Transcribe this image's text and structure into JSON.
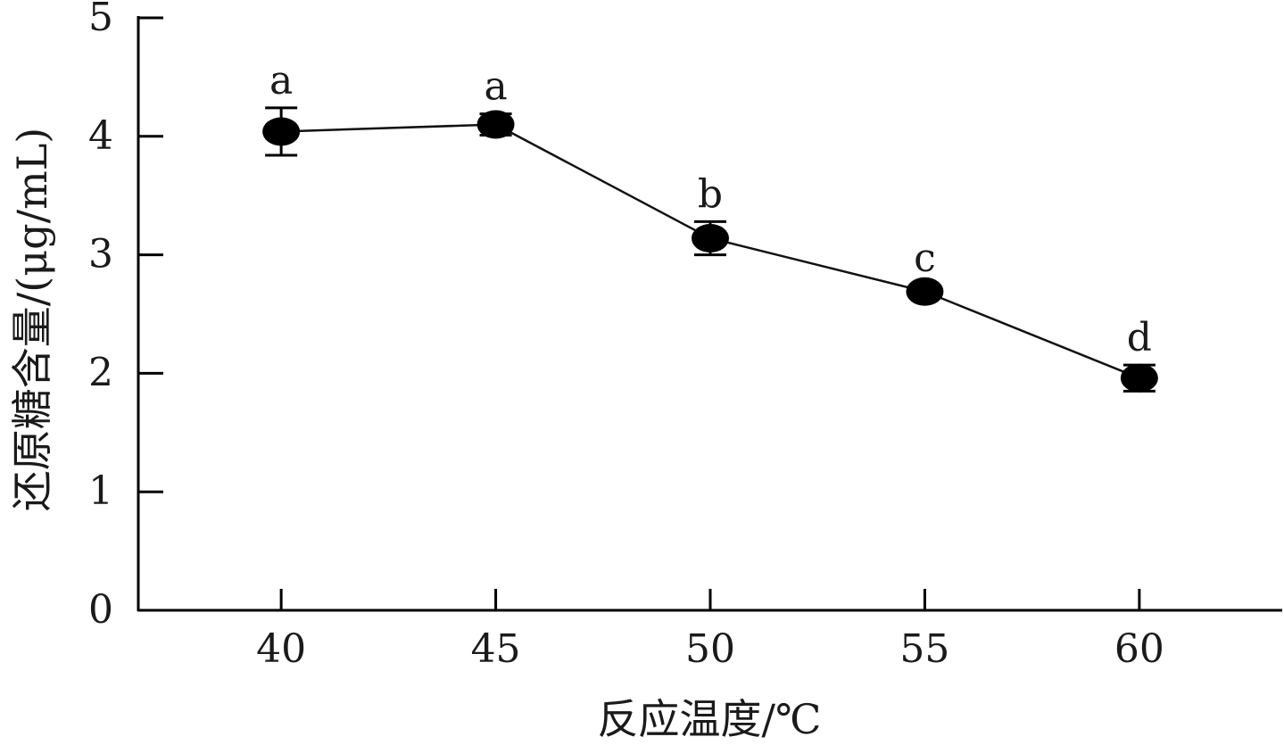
{
  "chart_data": {
    "type": "line",
    "title": "",
    "xlabel": "反应温度/℃",
    "ylabel": "还原糖含量/(μg/mL)",
    "x": [
      40,
      45,
      50,
      55,
      60
    ],
    "x_ticks": [
      "40",
      "45",
      "50",
      "55",
      "60"
    ],
    "xlim": [
      36.67,
      63.33
    ],
    "ylim": [
      0,
      5
    ],
    "y_ticks": [
      "0",
      "1",
      "2",
      "3",
      "4",
      "5"
    ],
    "series": [
      {
        "name": "",
        "values": [
          4.04,
          4.1,
          3.14,
          2.69,
          1.96
        ],
        "errors": [
          0.2,
          0.09,
          0.14,
          0.05,
          0.11
        ],
        "labels": [
          "a",
          "a",
          "b",
          "c",
          "d"
        ]
      }
    ],
    "grid": false,
    "legend": "none",
    "colors": {
      "line": "#111111",
      "marker": "#000000",
      "axis": "#000000"
    }
  }
}
